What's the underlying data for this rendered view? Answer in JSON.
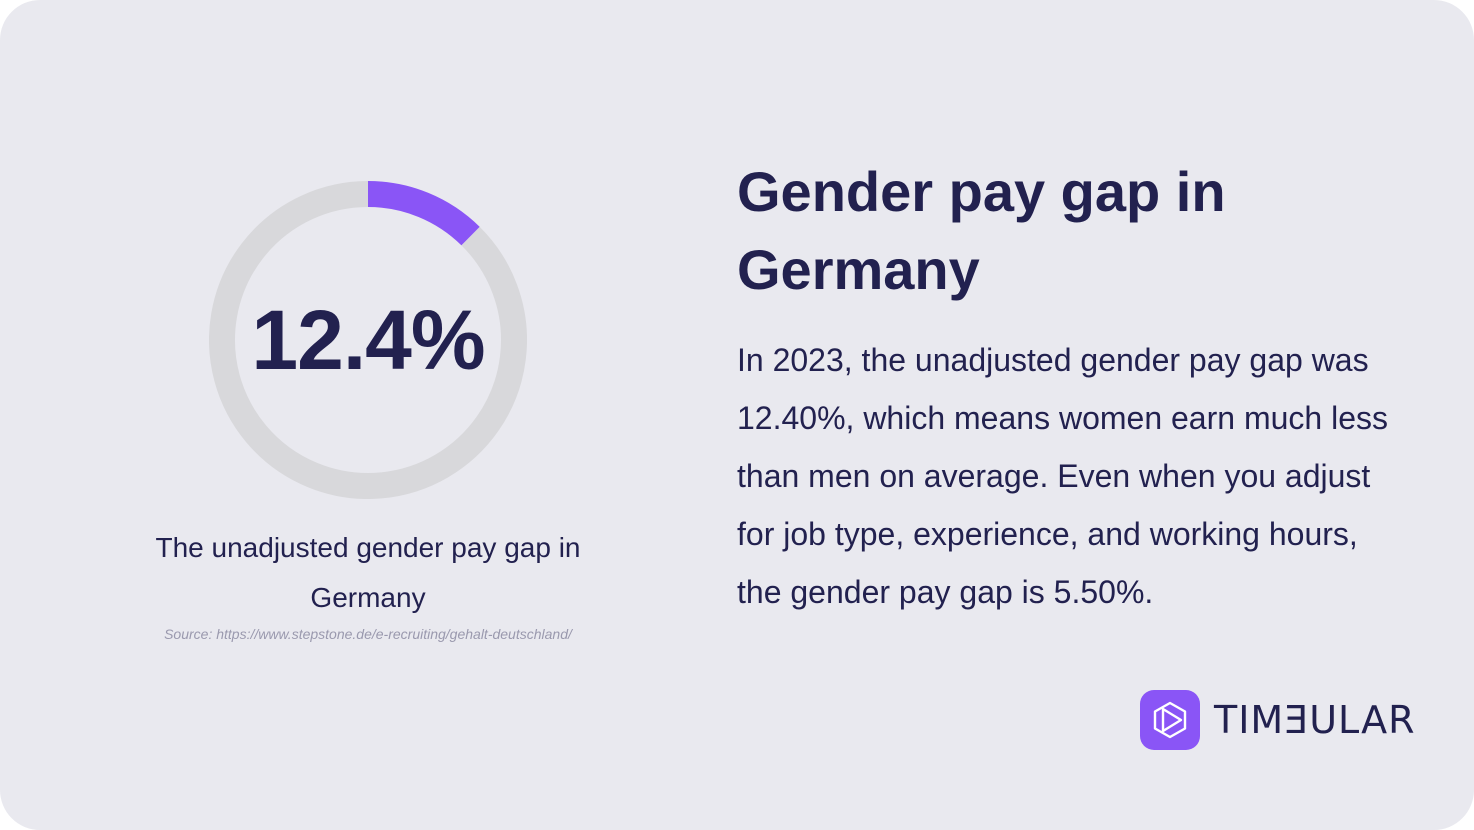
{
  "colors": {
    "background": "#e9e9ef",
    "text": "#22214f",
    "accent": "#8a55f6",
    "track": "#d8d8db",
    "source_text": "#9a99ae"
  },
  "chart_data": {
    "type": "pie",
    "center_label": "12.4%",
    "slices": [
      {
        "value": 12.4,
        "color": "#8a55f6"
      },
      {
        "value": 87.6,
        "color": "#d8d8db"
      }
    ],
    "caption": "The unadjusted gender pay gap in Germany",
    "source": "Source: https://www.stepstone.de/e-recruiting/gehalt-deutschland/"
  },
  "article": {
    "title": "Gender pay gap in Germany",
    "body": "In 2023, the unadjusted gender pay gap was 12.40%, which means women earn much less than men on average. Even when you adjust for job type, experience, and working hours, the gender pay gap is 5.50%."
  },
  "brand": {
    "name": "TIMƎULAR",
    "icon": "timeular-logo-icon"
  }
}
